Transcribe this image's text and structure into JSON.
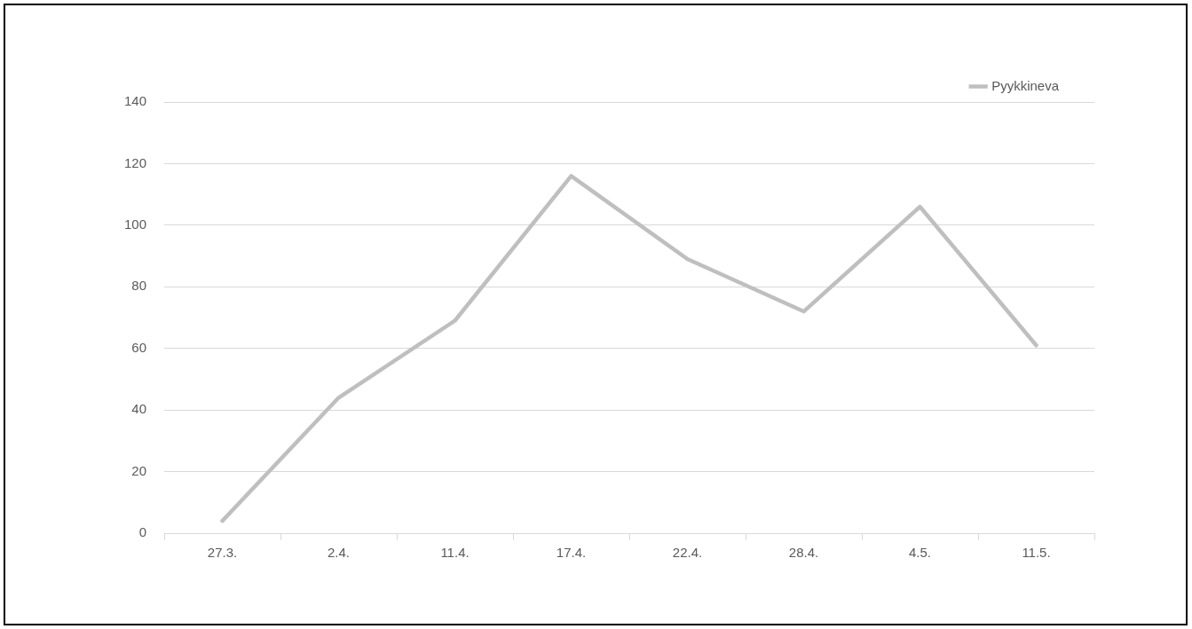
{
  "chart_data": {
    "type": "line",
    "categories": [
      "27.3.",
      "2.4.",
      "11.4.",
      "17.4.",
      "22.4.",
      "28.4.",
      "4.5.",
      "11.5."
    ],
    "series": [
      {
        "name": "Pyykkineva",
        "color": "#bfbfbf",
        "values": [
          4,
          44,
          69,
          116,
          89,
          72,
          106,
          61
        ]
      }
    ],
    "ylim": [
      0,
      140
    ],
    "yticks": [
      0,
      20,
      40,
      60,
      80,
      100,
      120,
      140
    ],
    "grid": "y",
    "legend": "top right",
    "marker": "none",
    "line_style": "solid"
  }
}
